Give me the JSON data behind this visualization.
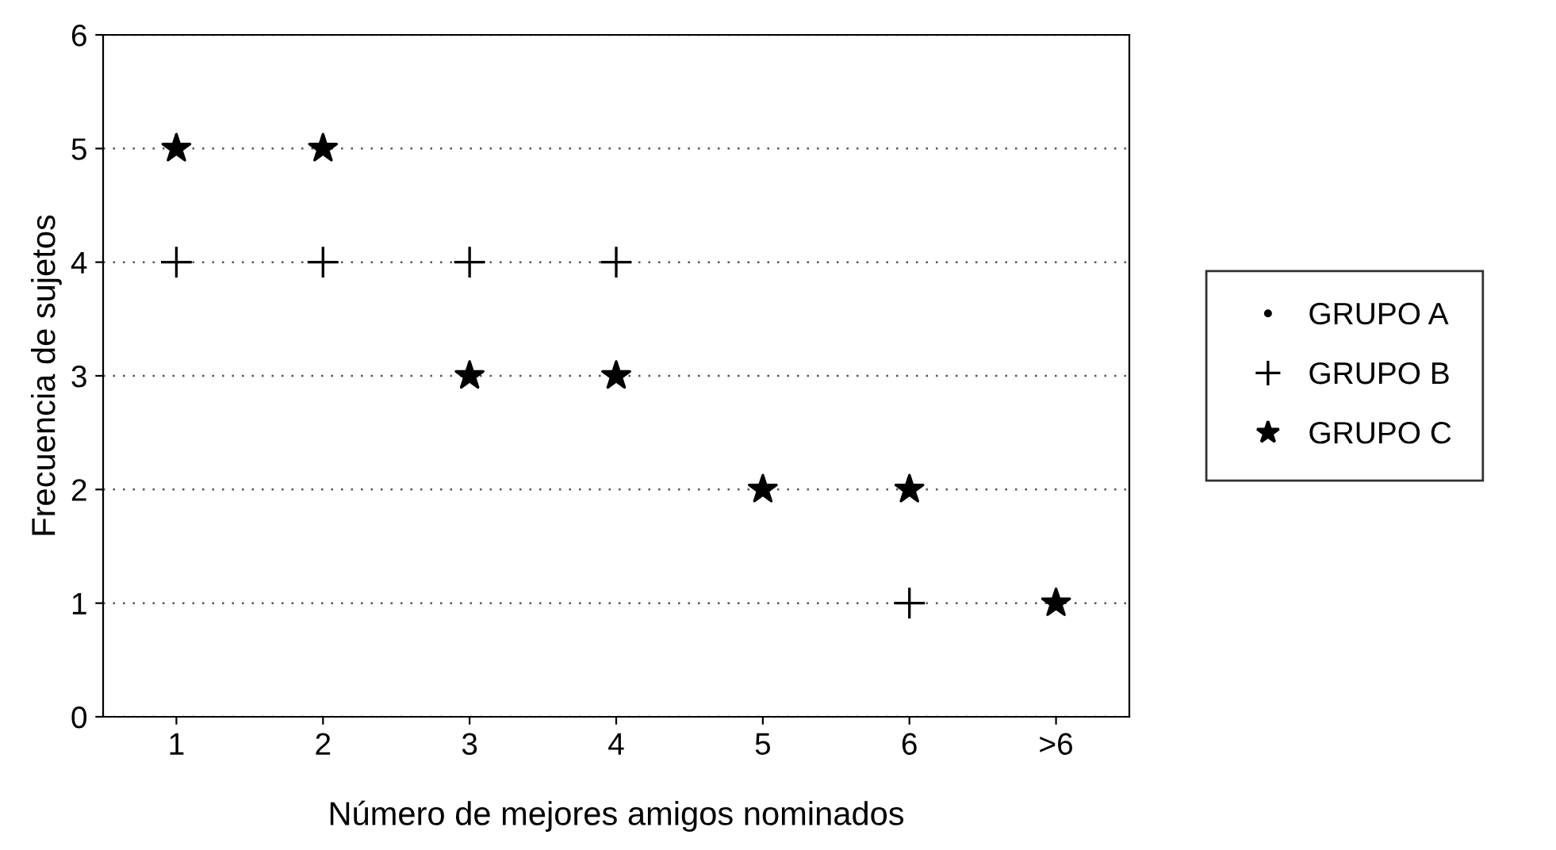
{
  "chart_data": {
    "type": "scatter",
    "xlabel": "Número de mejores amigos nominados",
    "ylabel": "Frecuencia de sujetos",
    "categories": [
      "1",
      "2",
      "3",
      "4",
      "5",
      "6",
      ">6"
    ],
    "series": [
      {
        "name": "GRUPO A",
        "color": "#000000",
        "marker": "circle",
        "values": [
          null,
          null,
          null,
          null,
          null,
          null,
          null
        ]
      },
      {
        "name": "GRUPO B",
        "color": "#000000",
        "marker": "cross",
        "values": [
          4,
          4,
          4,
          4,
          null,
          1,
          null
        ]
      },
      {
        "name": "GRUPO C",
        "color": "#000000",
        "marker": "star",
        "values": [
          5,
          5,
          3,
          3,
          2,
          2,
          1
        ]
      }
    ],
    "ylim": [
      0,
      6
    ],
    "yticks": [
      0,
      1,
      2,
      3,
      4,
      5,
      6
    ],
    "grid": "y",
    "legend": "right"
  }
}
